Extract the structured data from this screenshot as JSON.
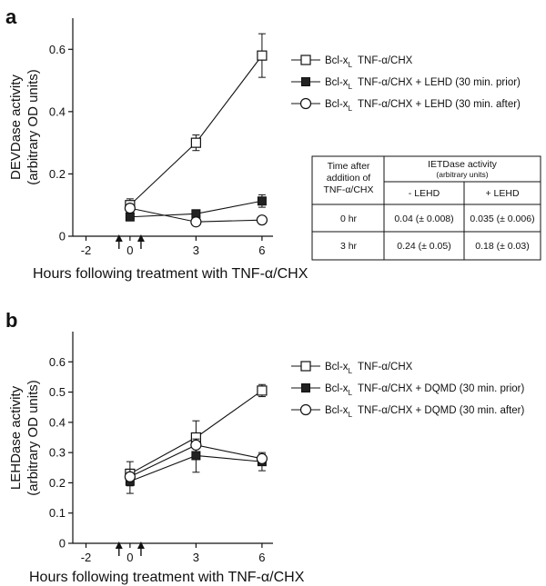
{
  "chart_data": [
    {
      "panel": "a",
      "type": "line",
      "ylabel_line1": "DEVDase activity",
      "ylabel_line2": "(arbitrary OD units)",
      "xlabel": "Hours following treatment with TNF-α/CHX",
      "x_ticks": [
        "-2",
        "0",
        "3",
        "6"
      ],
      "y_ticks": [
        "0",
        "0.2",
        "0.4",
        "0.6"
      ],
      "xlim": [
        -2.6,
        6.5
      ],
      "ylim": [
        0,
        0.7
      ],
      "arrows_at": [
        -0.5,
        0.5
      ],
      "series": [
        {
          "name": "Bcl-xL TNF-α/CHX",
          "legend_base": "Bcl-x",
          "legend_sub": "L",
          "legend_rest": "TNF-α/CHX",
          "marker": "open-square",
          "x": [
            0,
            3,
            6
          ],
          "y": [
            0.1,
            0.3,
            0.58
          ],
          "err": [
            0.02,
            0.025,
            0.07
          ]
        },
        {
          "name": "Bcl-xL TNF-α/CHX + LEHD (30 min. prior)",
          "legend_base": "Bcl-x",
          "legend_sub": "L",
          "legend_rest": "TNF-α/CHX + LEHD (30 min. prior)",
          "marker": "filled-square",
          "x": [
            0,
            3,
            6
          ],
          "y": [
            0.062,
            0.072,
            0.113
          ],
          "err": [
            0.012,
            0.0,
            0.02
          ]
        },
        {
          "name": "Bcl-xL TNF-α/CHX + LEHD (30 min. after)",
          "legend_base": "Bcl-x",
          "legend_sub": "L",
          "legend_rest": "TNF-α/CHX + LEHD (30 min. after)",
          "marker": "open-circle",
          "x": [
            0,
            3,
            6
          ],
          "y": [
            0.09,
            0.046,
            0.052
          ],
          "err": [
            0.0,
            0.0,
            0.0
          ]
        }
      ]
    },
    {
      "panel": "b",
      "type": "line",
      "ylabel_line1": "LEHDase activity",
      "ylabel_line2": "(arbitrary OD units)",
      "xlabel": "Hours following treatment with TNF-α/CHX",
      "x_ticks": [
        "-2",
        "0",
        "3",
        "6"
      ],
      "y_ticks": [
        "0",
        "0.1",
        "0.2",
        "0.3",
        "0.4",
        "0.5",
        "0.6"
      ],
      "xlim": [
        -2.6,
        6.5
      ],
      "ylim": [
        0,
        0.7
      ],
      "arrows_at": [
        -0.5,
        0.5
      ],
      "series": [
        {
          "name": "Bcl-xL TNF-α/CHX",
          "legend_base": "Bcl-x",
          "legend_sub": "L",
          "legend_rest": "TNF-α/CHX",
          "marker": "open-square",
          "x": [
            0,
            3,
            6
          ],
          "y": [
            0.23,
            0.35,
            0.505
          ],
          "err": [
            0.04,
            0.055,
            0.02
          ]
        },
        {
          "name": "Bcl-xL TNF-α/CHX + DQMD (30 min. prior)",
          "legend_base": "Bcl-x",
          "legend_sub": "L",
          "legend_rest": "TNF-α/CHX + DQMD (30 min. prior)",
          "marker": "filled-square",
          "x": [
            0,
            3,
            6
          ],
          "y": [
            0.205,
            0.29,
            0.27
          ],
          "err": [
            0.04,
            0.055,
            0.03
          ]
        },
        {
          "name": "Bcl-xL TNF-α/CHX + DQMD (30 min. after)",
          "legend_base": "Bcl-x",
          "legend_sub": "L",
          "legend_rest": "TNF-α/CHX + DQMD (30 min. after)",
          "marker": "open-circle",
          "x": [
            0,
            3,
            6
          ],
          "y": [
            0.22,
            0.325,
            0.28
          ],
          "err": [
            0.0,
            0.0,
            0.015
          ]
        }
      ]
    }
  ],
  "panel_labels": {
    "a": "a",
    "b": "b"
  },
  "ietdase_table": {
    "header_col1_lines": [
      "Time after",
      "addition of",
      "TNF-α/CHX"
    ],
    "header_title": "IETDase activity",
    "header_subtitle": "(arbitrary units)",
    "col_minus": "- LEHD",
    "col_plus": "+ LEHD",
    "rows": [
      {
        "time": "0 hr",
        "minus": "0.04 (± 0.008)",
        "plus": "0.035 (± 0.006)"
      },
      {
        "time": "3 hr",
        "minus": "0.24 (± 0.05)",
        "plus": "0.18 (± 0.03)"
      }
    ]
  }
}
